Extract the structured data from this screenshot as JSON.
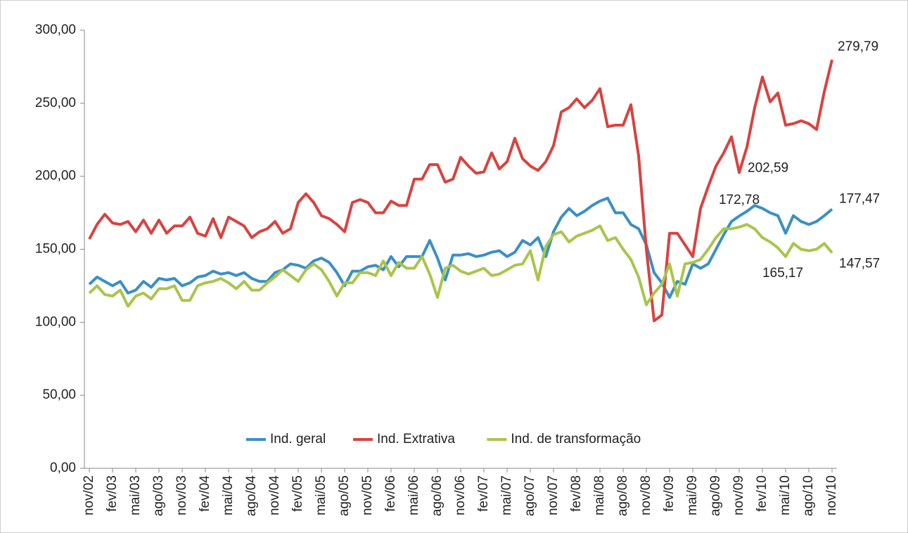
{
  "chart_data": {
    "type": "line",
    "categories": [
      "nov/02",
      null,
      null,
      "fev/03",
      null,
      null,
      "mai/03",
      null,
      null,
      "ago/03",
      null,
      null,
      "nov/03",
      null,
      null,
      "fev/04",
      null,
      null,
      "mai/04",
      null,
      null,
      "ago/04",
      null,
      null,
      "nov/04",
      null,
      null,
      "fev/05",
      null,
      null,
      "mai/05",
      null,
      null,
      "ago/05",
      null,
      null,
      "nov/05",
      null,
      null,
      "fev/06",
      null,
      null,
      "mai/06",
      null,
      null,
      "ago/06",
      null,
      null,
      "nov/06",
      null,
      null,
      "fev/07",
      null,
      null,
      "mai/07",
      null,
      null,
      "ago/07",
      null,
      null,
      "nov/07",
      null,
      null,
      "fev/08",
      null,
      null,
      "mai/08",
      null,
      null,
      "ago/08",
      null,
      null,
      "nov/08",
      null,
      null,
      "fev/09",
      null,
      null,
      "mai/09",
      null,
      null,
      "ago/09",
      null,
      null,
      "nov/09",
      null,
      null,
      "fev/10",
      null,
      null,
      "mai/10",
      null,
      null,
      "ago/10",
      null,
      null,
      "nov/10"
    ],
    "series": [
      {
        "name": "Ind. geral",
        "color": "#3b8fc6",
        "values": [
          126,
          131,
          128,
          125,
          128,
          120,
          122,
          128,
          124,
          130,
          129,
          130,
          125,
          127,
          131,
          132,
          135,
          133,
          134,
          132,
          134,
          130,
          128,
          128,
          134,
          136,
          140,
          139,
          137,
          142,
          144,
          141,
          134,
          125,
          135,
          135,
          138,
          139,
          136,
          145,
          138,
          145,
          145,
          145,
          156,
          144,
          129,
          146,
          146,
          147,
          145,
          146,
          148,
          149,
          145,
          148,
          156,
          153,
          158,
          145,
          162,
          172,
          178,
          173,
          176,
          180,
          183,
          185,
          175,
          175,
          167,
          164,
          153,
          134,
          127,
          117,
          128,
          126,
          140,
          137,
          140,
          150,
          160,
          169,
          172.78,
          176,
          180,
          178,
          175,
          173,
          161,
          173,
          169,
          167,
          169,
          173,
          177.47
        ],
        "value_labels": [
          null,
          null,
          null,
          null,
          null,
          null,
          null,
          null,
          null,
          null,
          null,
          null,
          null,
          null,
          null,
          null,
          null,
          null,
          null,
          null,
          null,
          null,
          null,
          null,
          null,
          null,
          null,
          null,
          null,
          null,
          null,
          null,
          null,
          null,
          null,
          null,
          null,
          null,
          null,
          null,
          null,
          null,
          null,
          null,
          null,
          null,
          null,
          null,
          null,
          null,
          null,
          null,
          null,
          null,
          null,
          null,
          null,
          null,
          null,
          null,
          null,
          null,
          null,
          null,
          null,
          null,
          null,
          null,
          null,
          null,
          null,
          null,
          null,
          null,
          null,
          null,
          null,
          null,
          null,
          null,
          null,
          null,
          null,
          null,
          "172,78",
          null,
          null,
          null,
          null,
          null,
          null,
          null,
          null,
          null,
          null,
          null,
          "177,47"
        ]
      },
      {
        "name": "Ind. Extrativa",
        "color": "#d8433f",
        "values": [
          157,
          167,
          174,
          168,
          167,
          169,
          162,
          170,
          161,
          170,
          161,
          166,
          166,
          172,
          161,
          159,
          171,
          158,
          172,
          169,
          166,
          158,
          162,
          164,
          169,
          161,
          164,
          182,
          188,
          182,
          173,
          171,
          167,
          162,
          182,
          184,
          182,
          175,
          175,
          183,
          180,
          180,
          198,
          198,
          208,
          208,
          196,
          198,
          213,
          207,
          202,
          203,
          216,
          205,
          210,
          226,
          212,
          207,
          204,
          210,
          221,
          244,
          247,
          253,
          247,
          252,
          260,
          234,
          235,
          235,
          249,
          214,
          150,
          101,
          105,
          161,
          161,
          153,
          145,
          178,
          193,
          207,
          216,
          227,
          202.59,
          220,
          247,
          268,
          251,
          257,
          235,
          236,
          238,
          236,
          232,
          258,
          279.79
        ],
        "value_labels": [
          null,
          null,
          null,
          null,
          null,
          null,
          null,
          null,
          null,
          null,
          null,
          null,
          null,
          null,
          null,
          null,
          null,
          null,
          null,
          null,
          null,
          null,
          null,
          null,
          null,
          null,
          null,
          null,
          null,
          null,
          null,
          null,
          null,
          null,
          null,
          null,
          null,
          null,
          null,
          null,
          null,
          null,
          null,
          null,
          null,
          null,
          null,
          null,
          null,
          null,
          null,
          null,
          null,
          null,
          null,
          null,
          null,
          null,
          null,
          null,
          null,
          null,
          null,
          null,
          null,
          null,
          null,
          null,
          null,
          null,
          null,
          null,
          null,
          null,
          null,
          null,
          null,
          null,
          null,
          null,
          null,
          null,
          null,
          null,
          "202,59",
          null,
          null,
          null,
          null,
          null,
          null,
          null,
          null,
          null,
          null,
          null,
          "279,79"
        ]
      },
      {
        "name": "Ind. de transformação",
        "color": "#a9c54b",
        "values": [
          120,
          125,
          119,
          118,
          122,
          111,
          118,
          120,
          116,
          123,
          123,
          125,
          115,
          115,
          125,
          127,
          128,
          130,
          127,
          123,
          128,
          122,
          122,
          127,
          131,
          136,
          132,
          128,
          136,
          140,
          136,
          128,
          118,
          127,
          127,
          134,
          134,
          132,
          142,
          132,
          141,
          137,
          137,
          145,
          133,
          117,
          137,
          139,
          135,
          133,
          135,
          137,
          132,
          133,
          136,
          139,
          140,
          149,
          129,
          152,
          160,
          162,
          155,
          159,
          161,
          163,
          166,
          156,
          158,
          150,
          143,
          131,
          112,
          120,
          126,
          140,
          118,
          140,
          141,
          143,
          150,
          158,
          164,
          164,
          165.17,
          167,
          164,
          158,
          155,
          151,
          145,
          154,
          150,
          149,
          150,
          154,
          147.57
        ],
        "value_labels": [
          null,
          null,
          null,
          null,
          null,
          null,
          null,
          null,
          null,
          null,
          null,
          null,
          null,
          null,
          null,
          null,
          null,
          null,
          null,
          null,
          null,
          null,
          null,
          null,
          null,
          null,
          null,
          null,
          null,
          null,
          null,
          null,
          null,
          null,
          null,
          null,
          null,
          null,
          null,
          null,
          null,
          null,
          null,
          null,
          null,
          null,
          null,
          null,
          null,
          null,
          null,
          null,
          null,
          null,
          null,
          null,
          null,
          null,
          null,
          null,
          null,
          null,
          null,
          null,
          null,
          null,
          null,
          null,
          null,
          null,
          null,
          null,
          null,
          null,
          null,
          null,
          null,
          null,
          null,
          null,
          null,
          null,
          null,
          null,
          "165,17",
          null,
          null,
          null,
          null,
          null,
          null,
          null,
          null,
          null,
          null,
          null,
          "147,57"
        ]
      }
    ],
    "ylim": [
      0,
      300
    ],
    "yticks": [
      {
        "value": 0,
        "label": "0,00"
      },
      {
        "value": 50,
        "label": "50,00"
      },
      {
        "value": 100,
        "label": "100,00"
      },
      {
        "value": 150,
        "label": "150,00"
      },
      {
        "value": 200,
        "label": "200,00"
      },
      {
        "value": 250,
        "label": "250,00"
      },
      {
        "value": 300,
        "label": "300,00"
      }
    ],
    "grid": false,
    "legend": "bottom"
  }
}
